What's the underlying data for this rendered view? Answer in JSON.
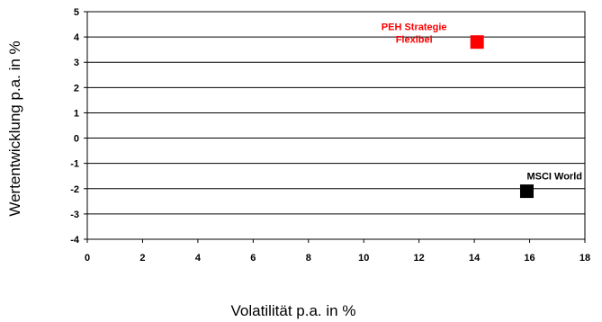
{
  "chart_data": {
    "type": "scatter",
    "xlabel": "Volatilität p.a. in %",
    "ylabel": "Wertentwicklung p.a. in %",
    "xlim": [
      0,
      18
    ],
    "ylim": [
      -4,
      5
    ],
    "xticks": [
      0,
      2,
      4,
      6,
      8,
      10,
      12,
      14,
      16,
      18
    ],
    "yticks": [
      -4,
      -3,
      -2,
      -1,
      0,
      1,
      2,
      3,
      4,
      5
    ],
    "grid": "horizontal",
    "points": [
      {
        "label_lines": [
          "PEH Strategie",
          "Flexibel"
        ],
        "x": 14.1,
        "y": 3.8,
        "color": "#ff0000",
        "label_color": "#ff0000",
        "marker": "square"
      },
      {
        "label_lines": [
          "MSCI World"
        ],
        "x": 15.9,
        "y": -2.1,
        "color": "#000000",
        "label_color": "#000000",
        "marker": "square"
      }
    ]
  }
}
